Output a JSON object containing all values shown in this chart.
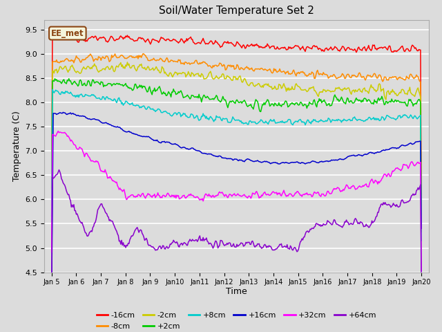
{
  "title": "Soil/Water Temperature Set 2",
  "xlabel": "Time",
  "ylabel": "Temperature (C)",
  "ylim": [
    4.5,
    9.7
  ],
  "bg_color": "#dcdcdc",
  "annotation_text": "EE_met",
  "annotation_color": "#8B4513",
  "annotation_bg": "#f5f5dc",
  "x_labels": [
    "Jan 5",
    "Jan 6",
    "Jan 7",
    "Jan 8",
    "Jan 9",
    "Jan 10",
    "Jan 11",
    "Jan 12",
    "Jan 13",
    "Jan 14",
    "Jan 15",
    "Jan 16",
    "Jan 17",
    "Jan 18",
    "Jan 19",
    "Jan 20"
  ],
  "y_ticks": [
    4.5,
    5.0,
    5.5,
    6.0,
    6.5,
    7.0,
    7.5,
    8.0,
    8.5,
    9.0,
    9.5
  ],
  "series_colors": [
    "#ff0000",
    "#ff8c00",
    "#cccc00",
    "#00cc00",
    "#00cccc",
    "#0000cc",
    "#ff00ff",
    "#8800cc"
  ],
  "series_labels": [
    "-16cm",
    "-8cm",
    "-2cm",
    "+2cm",
    "+8cm",
    "+16cm",
    "+32cm",
    "+64cm"
  ]
}
